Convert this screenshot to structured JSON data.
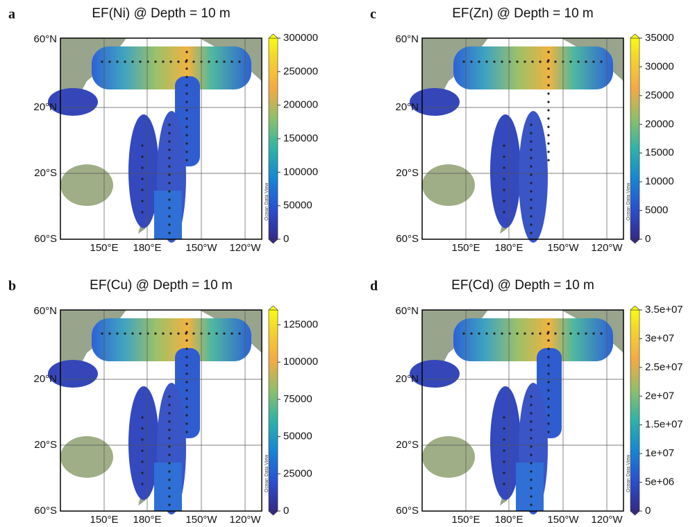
{
  "panels": [
    {
      "letter": "a",
      "title": "EF(Ni) @ Depth = 10 m",
      "lat_labels": [
        "60°N",
        "20°N",
        "20°S",
        "60°S"
      ],
      "lon_labels": [
        "150°E",
        "180°E",
        "150°W",
        "120°W"
      ],
      "colorbar": {
        "lim": [
          0,
          300000
        ],
        "ticks": [
          0,
          50000,
          100000,
          150000,
          200000,
          250000,
          300000
        ]
      },
      "watermark": "Ocean Data View"
    },
    {
      "letter": "b",
      "title": "EF(Cu) @ Depth = 10 m",
      "lat_labels": [
        "60°N",
        "20°N",
        "20°S",
        "60°S"
      ],
      "lon_labels": [
        "150°E",
        "180°E",
        "150°W",
        "120°W"
      ],
      "colorbar": {
        "lim": [
          0,
          135000
        ],
        "ticks": [
          0,
          25000,
          50000,
          75000,
          100000,
          125000
        ]
      },
      "watermark": "Ocean Data View"
    },
    {
      "letter": "c",
      "title": "EF(Zn) @ Depth = 10 m",
      "lat_labels": [
        "60°N",
        "20°N",
        "20°S",
        "60°S"
      ],
      "lon_labels": [
        "150°E",
        "180°E",
        "150°W",
        "120°W"
      ],
      "colorbar": {
        "lim": [
          0,
          35000
        ],
        "ticks": [
          0,
          5000,
          10000,
          15000,
          20000,
          25000,
          30000,
          35000
        ]
      },
      "watermark": "Ocean Data View"
    },
    {
      "letter": "d",
      "title": "EF(Cd) @ Depth = 10 m",
      "lat_labels": [
        "60°N",
        "20°N",
        "20°S",
        "60°S"
      ],
      "lon_labels": [
        "150°E",
        "180°E",
        "150°W",
        "120°W"
      ],
      "colorbar": {
        "lim": [
          0,
          35000000
        ],
        "ticks": [
          0,
          {
            "value": 5000000,
            "label": "5e+06"
          },
          {
            "value": 10000000,
            "label": "1e+07"
          },
          {
            "value": 15000000,
            "label": "1.5e+07"
          },
          {
            "value": 20000000,
            "label": "2e+07"
          },
          {
            "value": 25000000,
            "label": "2.5e+07"
          },
          {
            "value": 30000000,
            "label": "3e+07"
          },
          {
            "value": 35000000,
            "label": "3.5e+07"
          }
        ]
      },
      "watermark": "Ocean Data View"
    }
  ]
}
